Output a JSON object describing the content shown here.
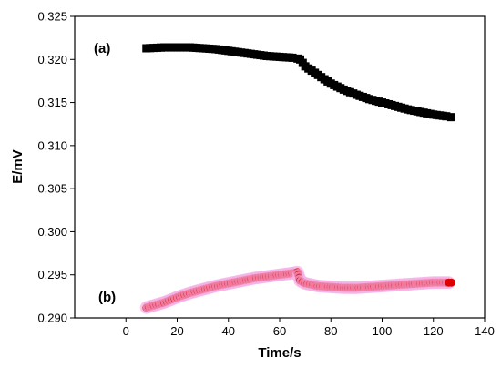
{
  "chart_data": {
    "type": "scatter",
    "xlabel": "Time/s",
    "ylabel": "E/mV",
    "xlim": [
      -20,
      140
    ],
    "ylim": [
      0.29,
      0.325
    ],
    "xticks": [
      "0",
      "20",
      "40",
      "60",
      "80",
      "100",
      "120",
      "140"
    ],
    "yticks": [
      "0.290",
      "0.295",
      "0.300",
      "0.305",
      "0.310",
      "0.315",
      "0.320",
      "0.325"
    ],
    "grid": false,
    "series": [
      {
        "name": "(a)",
        "color": "#000000",
        "marker": "square",
        "x": [
          8,
          15,
          20,
          25,
          30,
          35,
          40,
          45,
          50,
          55,
          60,
          65,
          67,
          68,
          70,
          75,
          80,
          85,
          90,
          95,
          100,
          105,
          110,
          115,
          120,
          125,
          127
        ],
        "y": [
          0.3213,
          0.3214,
          0.3214,
          0.3214,
          0.3213,
          0.3212,
          0.321,
          0.3208,
          0.3206,
          0.3204,
          0.3203,
          0.3202,
          0.3201,
          0.32,
          0.3192,
          0.3182,
          0.3172,
          0.3165,
          0.3159,
          0.3154,
          0.315,
          0.3146,
          0.3142,
          0.3139,
          0.3136,
          0.3134,
          0.3133
        ]
      },
      {
        "name": "(b)",
        "color": "#e00000",
        "marker": "circle",
        "x": [
          8,
          15,
          20,
          25,
          30,
          35,
          40,
          45,
          50,
          55,
          60,
          65,
          67,
          68,
          70,
          75,
          80,
          85,
          90,
          95,
          100,
          105,
          110,
          115,
          120,
          125,
          127
        ],
        "y": [
          0.2912,
          0.2918,
          0.2924,
          0.2929,
          0.2933,
          0.2937,
          0.294,
          0.2943,
          0.2946,
          0.2948,
          0.295,
          0.2952,
          0.2953,
          0.2943,
          0.294,
          0.2937,
          0.2936,
          0.2935,
          0.2935,
          0.2936,
          0.2937,
          0.2938,
          0.2939,
          0.294,
          0.2941,
          0.2941,
          0.2941
        ]
      }
    ]
  }
}
